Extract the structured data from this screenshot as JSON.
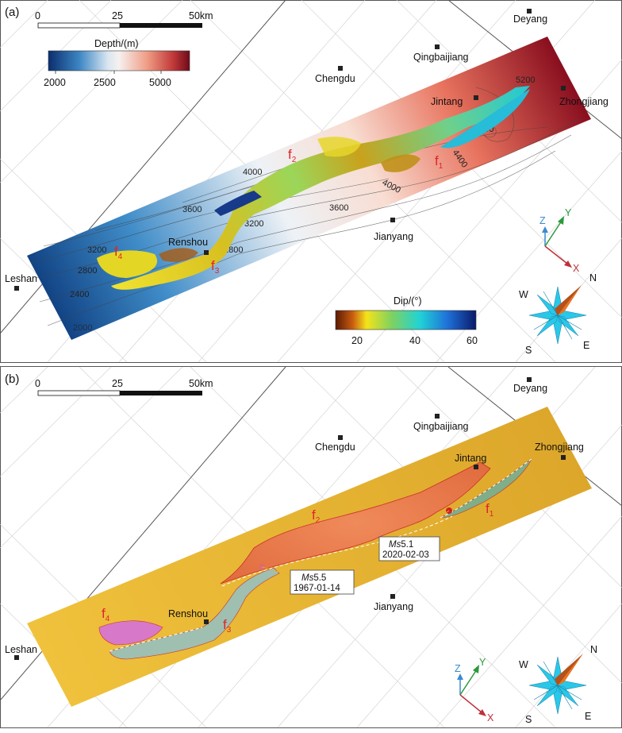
{
  "panels": [
    {
      "label": "(a)",
      "scale": {
        "ticks": [
          "0",
          "25",
          "50km"
        ]
      },
      "depth_colorbar": {
        "title": "Depth/(m)",
        "ticks": [
          "2000",
          "2500",
          "5000"
        ]
      },
      "dip_colorbar": {
        "title": "Dip/(°)",
        "ticks": [
          "20",
          "40",
          "60"
        ]
      },
      "cities": {
        "deyang": "Deyang",
        "qingbaijiang": "Qingbaijiang",
        "chengdu": "Chengdu",
        "jintang": "Jintang",
        "zhongjiang": "Zhongjiang",
        "jianyang": "Jianyang",
        "renshou": "Renshou",
        "leshan": "Leshan"
      },
      "contours": [
        "5200",
        "4800",
        "4400",
        "4000",
        "4000",
        "3600",
        "3600",
        "3200",
        "3200",
        "2800",
        "2800",
        "2400",
        "2000"
      ],
      "faults": {
        "f1": "f",
        "f1_sub": "1",
        "f2": "f",
        "f2_sub": "2",
        "f3": "f",
        "f3_sub": "3",
        "f4": "f",
        "f4_sub": "4"
      },
      "axes": {
        "x": "X",
        "y": "Y",
        "z": "Z"
      },
      "compass": {
        "n": "N",
        "s": "S",
        "e": "E",
        "w": "W"
      }
    },
    {
      "label": "(b)",
      "scale": {
        "ticks": [
          "0",
          "25",
          "50km"
        ]
      },
      "cities": {
        "deyang": "Deyang",
        "qingbaijiang": "Qingbaijiang",
        "chengdu": "Chengdu",
        "jintang": "Jintang",
        "zhongjiang": "Zhongjiang",
        "jianyang": "Jianyang",
        "renshou": "Renshou",
        "leshan": "Leshan"
      },
      "faults": {
        "f1": "f",
        "f1_sub": "1",
        "f2": "f",
        "f2_sub": "2",
        "f3": "f",
        "f3_sub": "3",
        "f4": "f",
        "f4_sub": "4"
      },
      "earthquakes": [
        {
          "mag_prefix": "Ms",
          "mag": "5.1",
          "date": "2020-02-03"
        },
        {
          "mag_prefix": "Ms",
          "mag": "5.5",
          "date": "1967-01-14"
        }
      ],
      "axes": {
        "x": "X",
        "y": "Y",
        "z": "Z"
      },
      "compass": {
        "n": "N",
        "s": "S",
        "e": "E",
        "w": "W"
      }
    }
  ],
  "colors": {
    "fault_label": "#e0242b",
    "horizon_b": "#e8b02c",
    "fault_f2_b": "#ec7a4a",
    "fault_f4_b": "#d878c8",
    "fault_f3_b": "#9fbfb0",
    "fault_f1_b": "#7fae88"
  }
}
